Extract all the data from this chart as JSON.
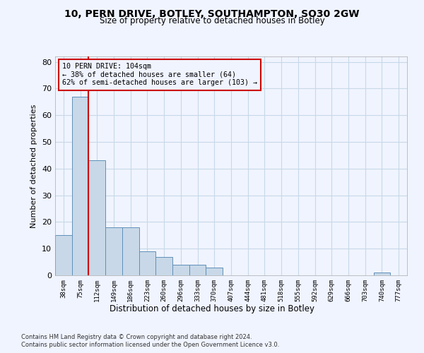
{
  "title1": "10, PERN DRIVE, BOTLEY, SOUTHAMPTON, SO30 2GW",
  "title2": "Size of property relative to detached houses in Botley",
  "xlabel": "Distribution of detached houses by size in Botley",
  "ylabel": "Number of detached properties",
  "footnote1": "Contains HM Land Registry data © Crown copyright and database right 2024.",
  "footnote2": "Contains public sector information licensed under the Open Government Licence v3.0.",
  "annotation_title": "10 PERN DRIVE: 104sqm",
  "annotation_line1": "← 38% of detached houses are smaller (64)",
  "annotation_line2": "62% of semi-detached houses are larger (103) →",
  "bar_color": "#c8d8e8",
  "bar_edge_color": "#6090b8",
  "grid_color": "#c8d8e8",
  "ref_line_color": "#cc0000",
  "background_color": "#f0f4ff",
  "categories": [
    "38sqm",
    "75sqm",
    "112sqm",
    "149sqm",
    "186sqm",
    "223sqm",
    "260sqm",
    "296sqm",
    "333sqm",
    "370sqm",
    "407sqm",
    "444sqm",
    "481sqm",
    "518sqm",
    "555sqm",
    "592sqm",
    "629sqm",
    "666sqm",
    "703sqm",
    "740sqm",
    "777sqm"
  ],
  "values": [
    15,
    67,
    43,
    18,
    18,
    9,
    7,
    4,
    4,
    3,
    0,
    0,
    0,
    0,
    0,
    0,
    0,
    0,
    0,
    1,
    0
  ],
  "ref_bar_index": 2,
  "ylim": [
    0,
    82
  ],
  "yticks": [
    0,
    10,
    20,
    30,
    40,
    50,
    60,
    70,
    80
  ]
}
